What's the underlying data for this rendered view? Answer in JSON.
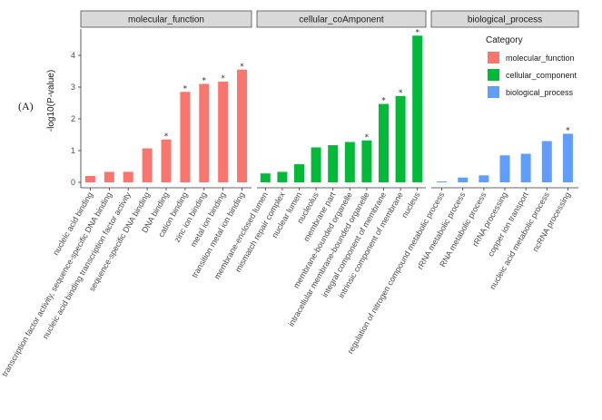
{
  "figure": {
    "panel_label": "(A)",
    "ylabel": "-log10(P-value)",
    "legend_title": "Category"
  },
  "chart_data": {
    "type": "bar",
    "ylabel": "-log10(P-value)",
    "ylim": [
      0,
      4.7
    ],
    "yticks": [
      0,
      1,
      2,
      3,
      4
    ],
    "grid": false,
    "legend": {
      "title": "Category",
      "position": "right",
      "entries": [
        {
          "name": "molecular_function",
          "color": "#F8766D"
        },
        {
          "name": "cellular_component",
          "color": "#00BA38"
        },
        {
          "name": "biological_process",
          "color": "#619CFF"
        }
      ]
    },
    "facets": [
      {
        "strip": "molecular_function",
        "color": "#F8766D",
        "categories": [
          "nucleic acid binding",
          "transcription factor activity, sequence-specific DNA binding",
          "nucleic acid binding transcription factor activity",
          "sequence-specific DNA binding",
          "DNA binding",
          "cation binding",
          "zinc ion binding",
          "metal ion binding",
          "transition metal ion binding"
        ],
        "values": [
          0.2,
          0.33,
          0.33,
          1.07,
          1.35,
          2.85,
          3.1,
          3.17,
          3.55
        ],
        "significant": [
          false,
          false,
          false,
          false,
          true,
          true,
          true,
          true,
          true
        ]
      },
      {
        "strip": "cellular_coAmponent",
        "color": "#00BA38",
        "categories": [
          "membrane-enclosed lumen",
          "mismatch repair complex",
          "nuclear lumen",
          "nucleolus",
          "membrane part",
          "membrane-bounded organelle",
          "intracellular membrane-bounded organelle",
          "integral component of membrane",
          "intrinsic component of membrane",
          "nucleus"
        ],
        "values": [
          0.28,
          0.33,
          0.57,
          1.1,
          1.17,
          1.27,
          1.32,
          2.47,
          2.72,
          4.62
        ],
        "significant": [
          false,
          false,
          false,
          false,
          false,
          false,
          true,
          true,
          true,
          true
        ]
      },
      {
        "strip": "biological_process",
        "color": "#619CFF",
        "categories": [
          "regulation of nitrogen compound metabolic process",
          "rRNA metabolic process",
          "RNA metabolic process",
          "rRNA processing",
          "copper ion transport",
          "nucleic acid metabolic process",
          "ncRNA processing"
        ],
        "values": [
          0.03,
          0.15,
          0.22,
          0.85,
          0.9,
          1.3,
          1.53
        ],
        "significant": [
          false,
          false,
          false,
          false,
          false,
          false,
          true
        ]
      }
    ]
  }
}
